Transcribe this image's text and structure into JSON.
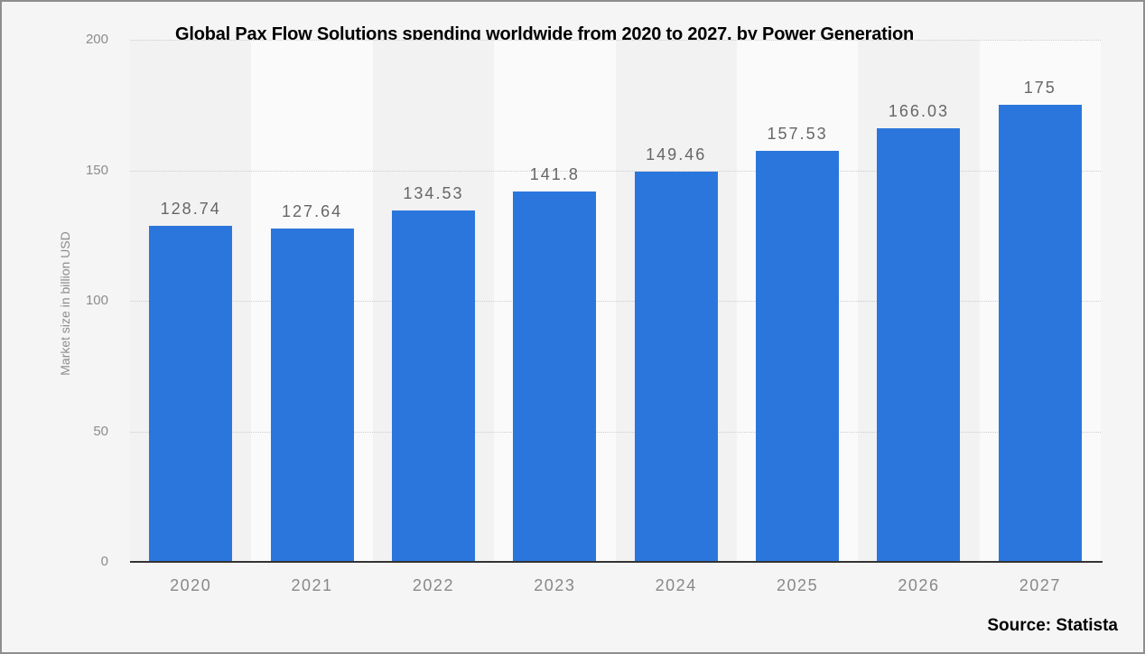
{
  "chart_data": {
    "type": "bar",
    "title": "Global Pax Flow Solutions spending worldwide from 2020 to 2027, by Power Generation",
    "categories": [
      "2020",
      "2021",
      "2022",
      "2023",
      "2024",
      "2025",
      "2026",
      "2027"
    ],
    "values": [
      128.74,
      127.64,
      134.53,
      141.8,
      149.46,
      157.53,
      166.03,
      175
    ],
    "value_labels": [
      "128.74",
      "127.64",
      "134.53",
      "141.8",
      "149.46",
      "157.53",
      "166.03",
      "175"
    ],
    "xlabel": "",
    "ylabel": "Market size in billion USD",
    "ylim": [
      0,
      200
    ],
    "yticks": [
      0,
      50,
      100,
      150,
      200
    ],
    "grid": "horizontal-dotted",
    "legend": "none",
    "source": "Source: Statista",
    "colors": {
      "bar": "#2b76dd",
      "band_odd": "#f2f2f2",
      "band_even": "#fafafa",
      "background": "#f5f5f5",
      "gridline": "#cccccc",
      "axis_line": "#333333",
      "tick_label": "#8c8c8c",
      "value_label": "#666666",
      "category_label": "#888888",
      "title": "#000000"
    }
  }
}
